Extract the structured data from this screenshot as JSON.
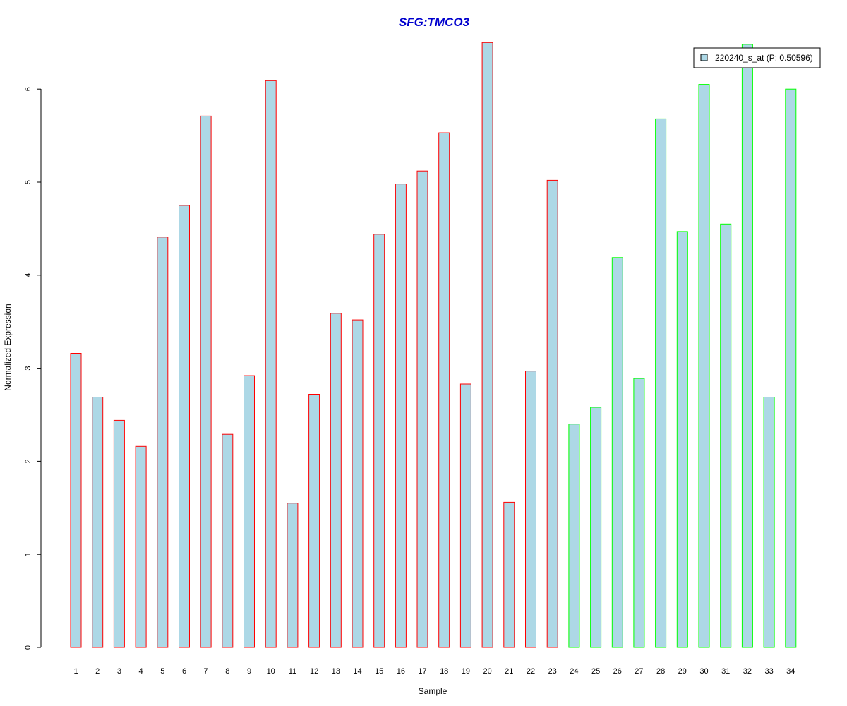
{
  "chart_data": {
    "type": "bar",
    "title": "SFG:TMCO3",
    "xlabel": "Sample",
    "ylabel": "Normalized Expression",
    "categories": [
      "1",
      "2",
      "3",
      "4",
      "5",
      "6",
      "7",
      "8",
      "9",
      "10",
      "11",
      "12",
      "13",
      "14",
      "15",
      "16",
      "17",
      "18",
      "19",
      "20",
      "21",
      "22",
      "23",
      "24",
      "25",
      "26",
      "27",
      "28",
      "29",
      "30",
      "31",
      "32",
      "33",
      "34"
    ],
    "values": [
      3.16,
      2.69,
      2.44,
      2.16,
      4.41,
      4.75,
      5.71,
      2.29,
      2.92,
      6.09,
      1.55,
      2.72,
      3.59,
      3.52,
      4.44,
      4.98,
      5.12,
      5.53,
      2.83,
      6.5,
      1.56,
      2.97,
      5.02,
      2.4,
      2.58,
      4.19,
      2.89,
      5.68,
      4.47,
      6.05,
      4.55,
      6.48,
      2.69,
      6.0
    ],
    "groups": [
      "red",
      "red",
      "red",
      "red",
      "red",
      "red",
      "red",
      "red",
      "red",
      "red",
      "red",
      "red",
      "red",
      "red",
      "red",
      "red",
      "red",
      "red",
      "red",
      "red",
      "red",
      "red",
      "red",
      "green",
      "green",
      "green",
      "green",
      "green",
      "green",
      "green",
      "green",
      "green",
      "green",
      "green"
    ],
    "yticks": [
      "0",
      "1",
      "2",
      "3",
      "4",
      "5",
      "6"
    ],
    "ylim": [
      0,
      6.5
    ],
    "grid": false,
    "legend": {
      "label": "220240_s_at (P: 0.50596)",
      "placement": "top-right"
    },
    "colors": {
      "fill": "#add8e6",
      "red_border": "#ff0000",
      "green_border": "#00ff00",
      "title": "#0000cd"
    }
  }
}
